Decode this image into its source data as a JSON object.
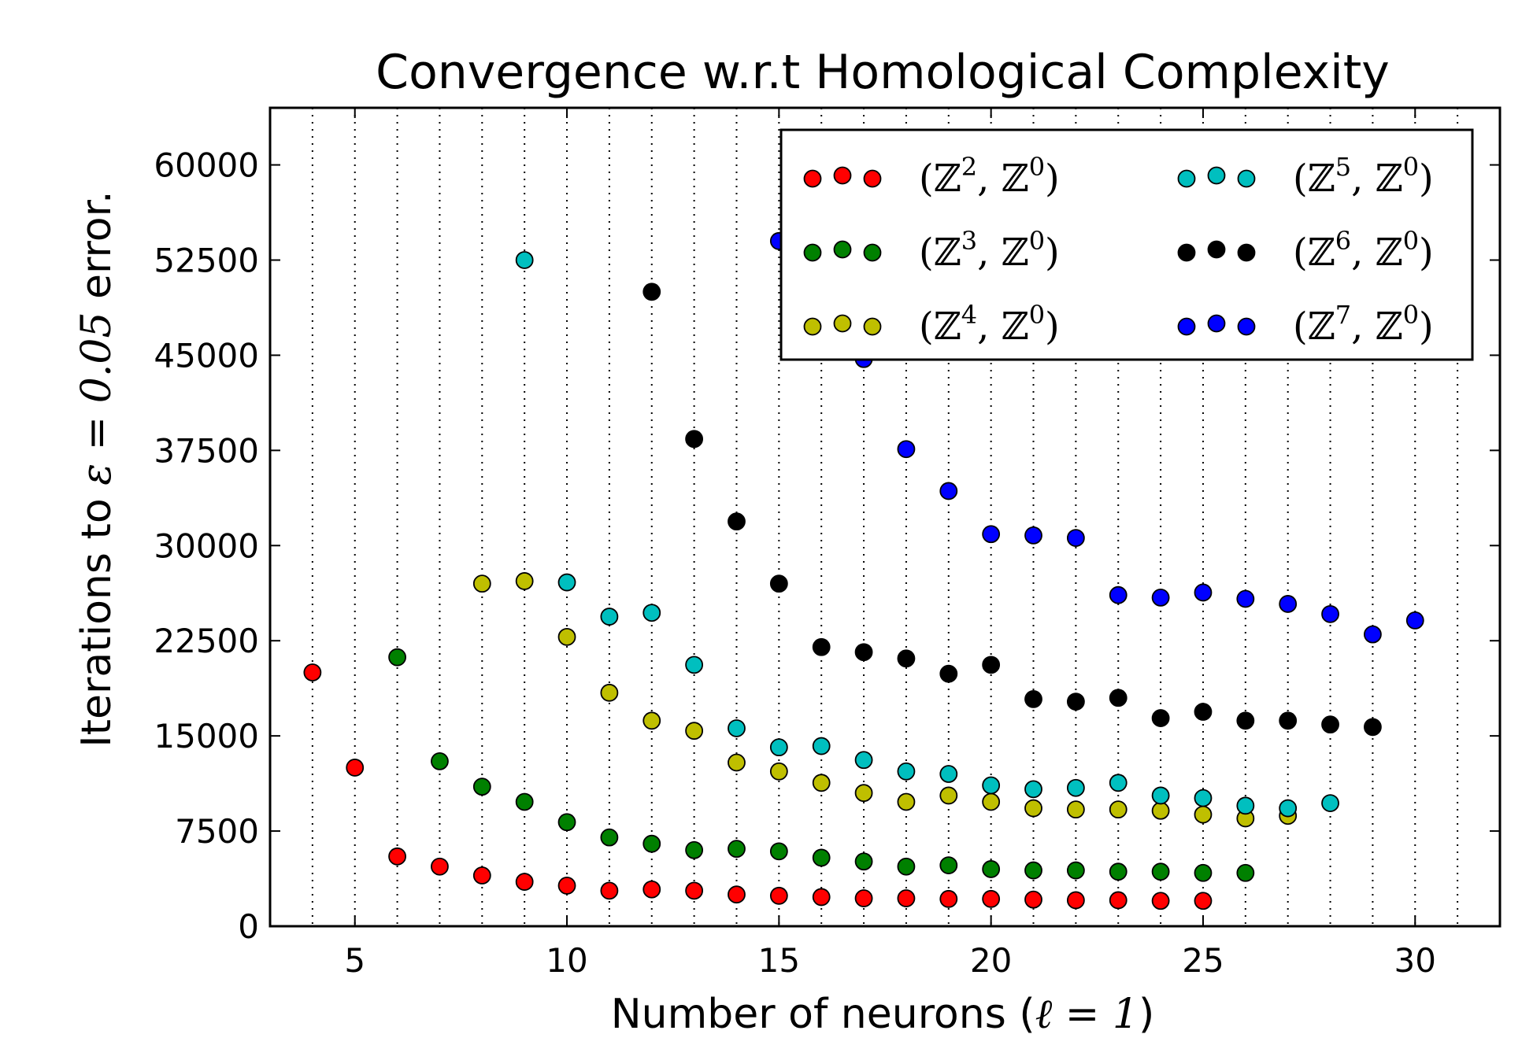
{
  "chart_data": {
    "type": "scatter",
    "title": "Convergence w.r.t Homological Complexity",
    "xlabel": {
      "text": "Number of neurons (",
      "math": "ℓ = 1",
      "tail": ")"
    },
    "ylabel": {
      "text": "Iterations to ",
      "math": "ε = 0.05",
      "tail": " error."
    },
    "xlim": [
      3,
      32
    ],
    "ylim": [
      0,
      64500
    ],
    "x_ticks": [
      5,
      10,
      15,
      20,
      25,
      30
    ],
    "x_tick_labels": [
      "5",
      "10",
      "15",
      "20",
      "25",
      "30"
    ],
    "y_ticks": [
      0,
      7500,
      15000,
      22500,
      30000,
      37500,
      45000,
      52500,
      60000
    ],
    "y_tick_labels": [
      "0",
      "7500",
      "15000",
      "22500",
      "30000",
      "37500",
      "45000",
      "52500",
      "60000"
    ],
    "grid": {
      "x": true,
      "y": false,
      "style": "dotted"
    },
    "x_grid_lines": [
      4,
      5,
      6,
      7,
      8,
      9,
      10,
      11,
      12,
      13,
      14,
      15,
      16,
      17,
      18,
      19,
      20,
      21,
      22,
      23,
      24,
      25,
      26,
      27,
      28,
      29,
      30,
      31
    ],
    "legend": {
      "position": "top-right",
      "columns": 2
    },
    "series": [
      {
        "name": "(ℤ², ℤ⁰)",
        "base": "ℤ",
        "sup": "2",
        "color": "#ff0000",
        "x": [
          4,
          5,
          6,
          7,
          8,
          9,
          10,
          11,
          12,
          13,
          14,
          15,
          16,
          17,
          18,
          19,
          20,
          21,
          22,
          23,
          24,
          25
        ],
        "y": [
          20000,
          12500,
          5500,
          4700,
          4000,
          3500,
          3200,
          2800,
          2900,
          2800,
          2500,
          2400,
          2300,
          2200,
          2200,
          2150,
          2150,
          2100,
          2050,
          2050,
          2000,
          2000
        ]
      },
      {
        "name": "(ℤ³, ℤ⁰)",
        "base": "ℤ",
        "sup": "3",
        "color": "#008000",
        "x": [
          6,
          7,
          8,
          9,
          10,
          11,
          12,
          13,
          14,
          15,
          16,
          17,
          18,
          19,
          20,
          21,
          22,
          23,
          24,
          25,
          26
        ],
        "y": [
          21200,
          13000,
          11000,
          9800,
          8200,
          7000,
          6500,
          6000,
          6100,
          5900,
          5400,
          5100,
          4700,
          4800,
          4500,
          4400,
          4400,
          4300,
          4300,
          4200,
          4200
        ]
      },
      {
        "name": "(ℤ⁴, ℤ⁰)",
        "base": "ℤ",
        "sup": "4",
        "color": "#bfbf00",
        "x": [
          8,
          9,
          10,
          11,
          12,
          13,
          14,
          15,
          16,
          17,
          18,
          19,
          20,
          21,
          22,
          23,
          24,
          25,
          26,
          27
        ],
        "y": [
          27000,
          27200,
          22800,
          18400,
          16200,
          15400,
          12900,
          12200,
          11300,
          10500,
          9800,
          10300,
          9800,
          9300,
          9200,
          9200,
          9100,
          8800,
          8500,
          8700
        ]
      },
      {
        "name": "(ℤ⁵, ℤ⁰)",
        "base": "ℤ",
        "sup": "5",
        "color": "#00bfbf",
        "x": [
          9,
          10,
          11,
          12,
          13,
          14,
          15,
          16,
          17,
          18,
          19,
          20,
          21,
          22,
          23,
          24,
          25,
          26,
          27,
          28
        ],
        "y": [
          52500,
          27100,
          24400,
          24700,
          20600,
          15600,
          14100,
          14200,
          13100,
          12200,
          12000,
          11100,
          10800,
          10900,
          11300,
          10300,
          10100,
          9500,
          9300,
          9700
        ]
      },
      {
        "name": "(ℤ⁶, ℤ⁰)",
        "base": "ℤ",
        "sup": "6",
        "color": "#000000",
        "x": [
          12,
          13,
          14,
          15,
          16,
          17,
          18,
          19,
          20,
          21,
          22,
          23,
          24,
          25,
          26,
          27,
          28,
          29
        ],
        "y": [
          50000,
          38400,
          31900,
          27000,
          22000,
          21600,
          21100,
          19900,
          20600,
          17900,
          17700,
          18000,
          16400,
          16900,
          16200,
          16200,
          15900,
          15700
        ]
      },
      {
        "name": "(ℤ⁷, ℤ⁰)",
        "base": "ℤ",
        "sup": "7",
        "color": "#0000ff",
        "x": [
          15,
          17,
          18,
          19,
          20,
          21,
          22,
          23,
          24,
          25,
          26,
          27,
          28,
          29,
          30
        ],
        "y": [
          54000,
          44700,
          37600,
          34300,
          30900,
          30800,
          30600,
          26100,
          25900,
          26300,
          25800,
          25400,
          24600,
          23000,
          24100
        ]
      }
    ]
  }
}
